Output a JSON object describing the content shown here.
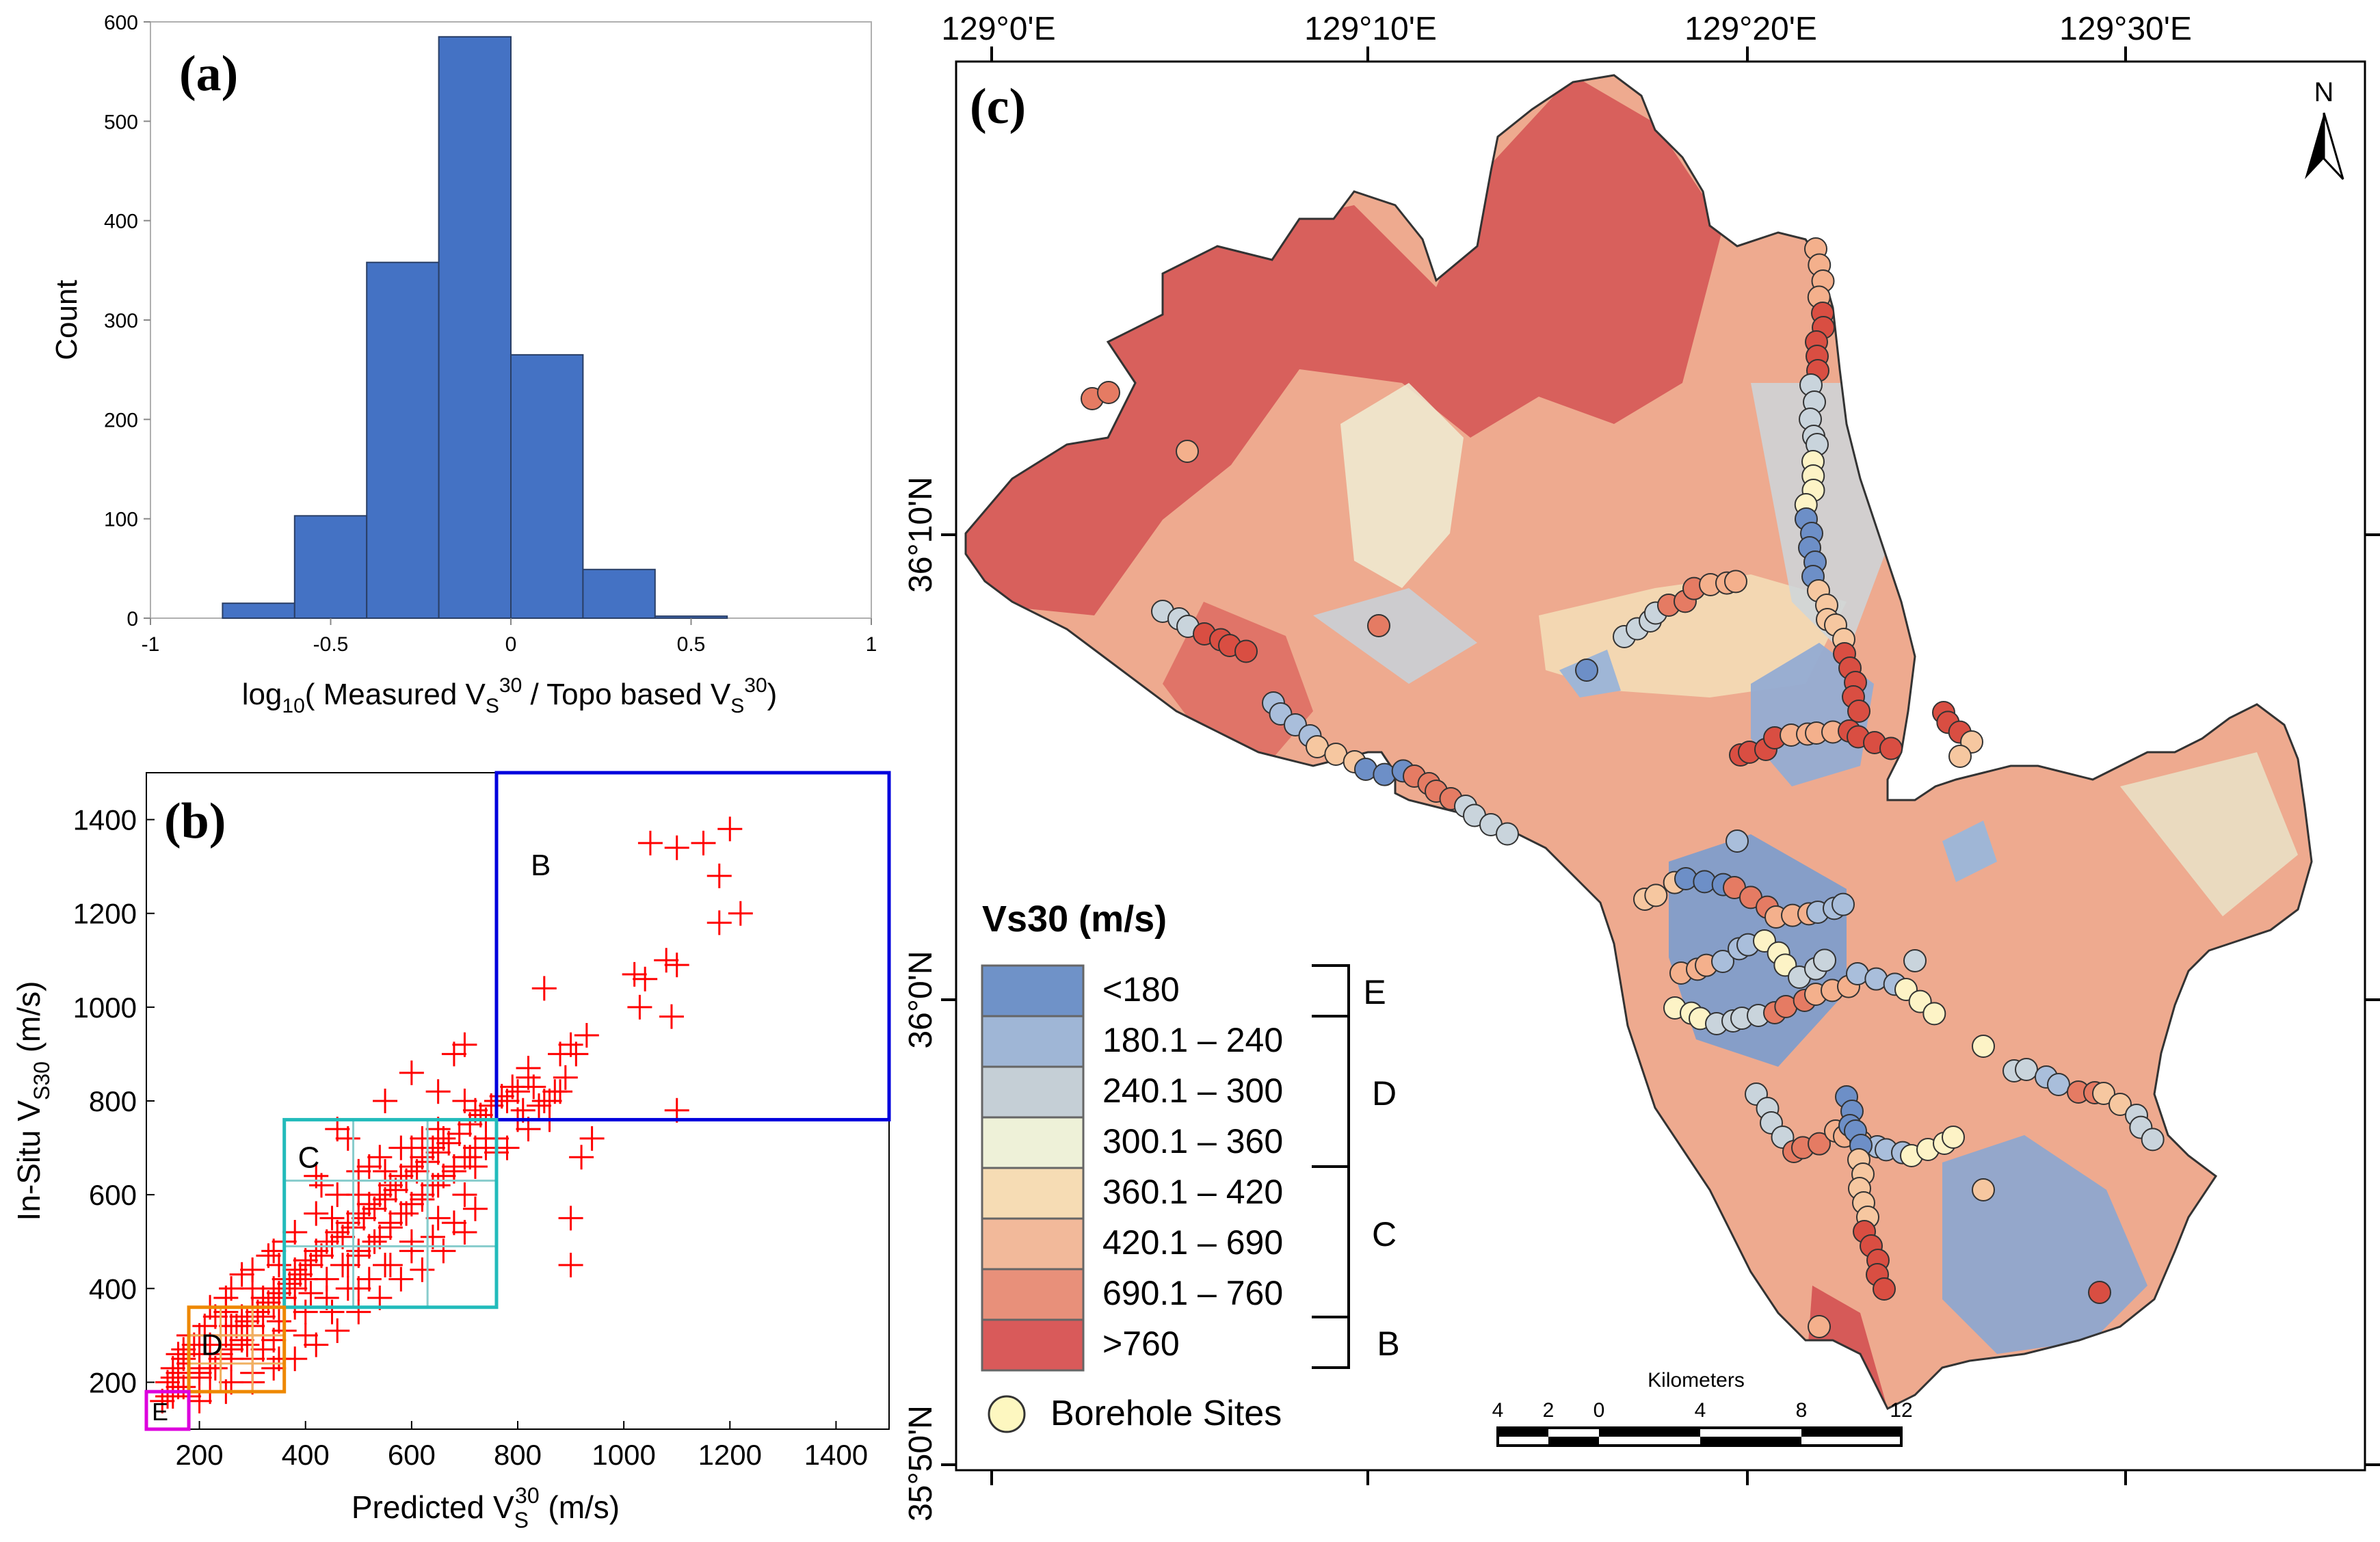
{
  "panel_a": {
    "label": "(a)",
    "xlabel_prefix": "log",
    "xlabel_sub10": "10",
    "xlabel_mid": "( Measured V",
    "xlabel_s": "S",
    "xlabel_30": "30",
    "xlabel_mid2": " / Topo based V",
    "xlabel_end": ")",
    "ylabel": "Count"
  },
  "panel_b": {
    "label": "(b)",
    "xlabel": "Predicted V",
    "xlabel_sub": "S",
    "xlabel_sup": "30",
    "xlabel_unit": " (m/s)",
    "ylabel": "In-Situ V",
    "ylabel_sub": "S30",
    "ylabel_unit": " (m/s)",
    "box_labels": [
      "B",
      "C",
      "D",
      "E"
    ]
  },
  "panel_c": {
    "label": "(c)",
    "north": "N",
    "lon_labels": [
      "129°0'E",
      "129°10'E",
      "129°20'E",
      "129°30'E"
    ],
    "lat_labels": [
      "36°10'N",
      "36°0'N",
      "35°50'N"
    ],
    "legend_title": "Vs30 (m/s)",
    "legend_items": [
      {
        "label": "<180",
        "color": "#6f92c8"
      },
      {
        "label": "180.1 – 240",
        "color": "#9fb6d6"
      },
      {
        "label": "240.1 – 300",
        "color": "#c5cfd6"
      },
      {
        "label": "300.1 – 360",
        "color": "#eef1d8"
      },
      {
        "label": "360.1 – 420",
        "color": "#f6dcb4"
      },
      {
        "label": "420.1 – 690",
        "color": "#f2b99a"
      },
      {
        "label": "690.1 – 760",
        "color": "#e8907a"
      },
      {
        "label": ">760",
        "color": "#d95a5a"
      }
    ],
    "site_classes": [
      "E",
      "D",
      "C",
      "B"
    ],
    "borehole_label": "Borehole Sites",
    "scale_title": "Kilometers",
    "scale_ticks": [
      "4",
      "2",
      "0",
      "4",
      "8",
      "12"
    ]
  },
  "chart_data": [
    {
      "type": "bar",
      "panel": "a",
      "title": "",
      "xlabel": "log10( Measured VS30 / Topo based VS30 )",
      "ylabel": "Count",
      "bin_edges": [
        -0.8,
        -0.6,
        -0.4,
        -0.2,
        0.0,
        0.2,
        0.4,
        0.6
      ],
      "values": [
        15,
        103,
        358,
        585,
        265,
        49,
        2
      ],
      "xlim": [
        -1,
        1
      ],
      "ylim": [
        0,
        600
      ],
      "xticks": [
        -1,
        -0.5,
        0,
        0.5,
        1
      ],
      "xtick_labels": [
        "-1",
        "-0.5",
        "0",
        "0.5",
        "1"
      ],
      "yticks": [
        0,
        100,
        200,
        300,
        400,
        500,
        600
      ],
      "color": "#4472c4"
    },
    {
      "type": "scatter",
      "panel": "b",
      "xlabel": "Predicted VS30 (m/s)",
      "ylabel": "In-Situ VS30 (m/s)",
      "xlim": [
        100,
        1500
      ],
      "ylim": [
        100,
        1500
      ],
      "xticks": [
        200,
        400,
        600,
        800,
        1000,
        1200,
        1400
      ],
      "yticks": [
        200,
        400,
        600,
        800,
        1000,
        1200,
        1400
      ],
      "marker": "+",
      "color": "#ff0000",
      "points": [
        [
          1050,
          1350
        ],
        [
          1100,
          1340
        ],
        [
          1150,
          1350
        ],
        [
          1200,
          1380
        ],
        [
          1180,
          1280
        ],
        [
          1220,
          1200
        ],
        [
          1180,
          1180
        ],
        [
          1020,
          1070
        ],
        [
          1040,
          1060
        ],
        [
          1080,
          1100
        ],
        [
          1100,
          1090
        ],
        [
          1030,
          1000
        ],
        [
          1090,
          980
        ],
        [
          1100,
          780
        ],
        [
          900,
          920
        ],
        [
          930,
          940
        ],
        [
          880,
          900
        ],
        [
          910,
          900
        ],
        [
          850,
          1040
        ],
        [
          890,
          850
        ],
        [
          820,
          870
        ],
        [
          850,
          800
        ],
        [
          870,
          820
        ],
        [
          800,
          820
        ],
        [
          780,
          800
        ],
        [
          900,
          550
        ],
        [
          900,
          450
        ],
        [
          920,
          680
        ],
        [
          940,
          720
        ],
        [
          820,
          740
        ],
        [
          860,
          760
        ],
        [
          700,
          920
        ],
        [
          680,
          900
        ],
        [
          600,
          860
        ],
        [
          650,
          820
        ],
        [
          550,
          800
        ],
        [
          420,
          640
        ],
        [
          430,
          620
        ],
        [
          460,
          740
        ],
        [
          480,
          720
        ],
        [
          520,
          660
        ],
        [
          700,
          800
        ],
        [
          720,
          780
        ],
        [
          740,
          760
        ],
        [
          660,
          720
        ],
        [
          640,
          700
        ],
        [
          620,
          680
        ],
        [
          600,
          660
        ],
        [
          580,
          640
        ],
        [
          560,
          620
        ],
        [
          540,
          600
        ],
        [
          520,
          580
        ],
        [
          500,
          560
        ],
        [
          480,
          540
        ],
        [
          460,
          520
        ],
        [
          440,
          500
        ],
        [
          420,
          480
        ],
        [
          400,
          460
        ],
        [
          380,
          440
        ],
        [
          360,
          420
        ],
        [
          340,
          400
        ],
        [
          320,
          380
        ],
        [
          300,
          360
        ],
        [
          280,
          340
        ],
        [
          260,
          320
        ],
        [
          240,
          300
        ],
        [
          220,
          280
        ],
        [
          200,
          260
        ],
        [
          180,
          240
        ],
        [
          160,
          220
        ],
        [
          140,
          200
        ],
        [
          130,
          160
        ],
        [
          150,
          170
        ],
        [
          170,
          190
        ],
        [
          200,
          210
        ],
        [
          230,
          230
        ],
        [
          260,
          250
        ],
        [
          290,
          280
        ],
        [
          320,
          300
        ],
        [
          350,
          330
        ],
        [
          380,
          360
        ],
        [
          410,
          390
        ],
        [
          440,
          420
        ],
        [
          470,
          450
        ],
        [
          500,
          480
        ],
        [
          530,
          500
        ],
        [
          560,
          530
        ],
        [
          590,
          560
        ],
        [
          620,
          590
        ],
        [
          650,
          620
        ],
        [
          680,
          650
        ],
        [
          710,
          680
        ],
        [
          740,
          700
        ],
        [
          760,
          720
        ],
        [
          700,
          600
        ],
        [
          650,
          550
        ],
        [
          600,
          500
        ],
        [
          550,
          450
        ],
        [
          500,
          400
        ],
        [
          450,
          350
        ],
        [
          400,
          300
        ],
        [
          350,
          250
        ],
        [
          300,
          200
        ],
        [
          250,
          180
        ],
        [
          200,
          160
        ],
        [
          700,
          520
        ],
        [
          660,
          480
        ],
        [
          620,
          440
        ],
        [
          580,
          420
        ],
        [
          540,
          380
        ],
        [
          500,
          350
        ],
        [
          460,
          310
        ],
        [
          420,
          280
        ],
        [
          380,
          250
        ],
        [
          340,
          230
        ],
        [
          300,
          220
        ],
        [
          260,
          200
        ],
        [
          220,
          180
        ],
        [
          180,
          170
        ],
        [
          620,
          720
        ],
        [
          580,
          700
        ],
        [
          540,
          680
        ],
        [
          500,
          650
        ],
        [
          460,
          600
        ],
        [
          420,
          560
        ],
        [
          380,
          520
        ],
        [
          340,
          480
        ],
        [
          300,
          440
        ],
        [
          260,
          400
        ],
        [
          220,
          360
        ],
        [
          180,
          300
        ],
        [
          160,
          260
        ],
        [
          150,
          230
        ],
        [
          300,
          250
        ],
        [
          320,
          270
        ],
        [
          340,
          290
        ],
        [
          360,
          310
        ],
        [
          280,
          290
        ],
        [
          260,
          270
        ],
        [
          240,
          250
        ],
        [
          220,
          230
        ],
        [
          200,
          220
        ],
        [
          250,
          300
        ],
        [
          270,
          320
        ],
        [
          290,
          330
        ],
        [
          310,
          350
        ],
        [
          330,
          370
        ],
        [
          350,
          390
        ],
        [
          370,
          410
        ],
        [
          390,
          430
        ],
        [
          410,
          450
        ],
        [
          430,
          470
        ],
        [
          450,
          490
        ],
        [
          470,
          510
        ],
        [
          490,
          530
        ],
        [
          510,
          550
        ],
        [
          530,
          570
        ],
        [
          550,
          590
        ],
        [
          570,
          610
        ],
        [
          590,
          630
        ],
        [
          610,
          650
        ],
        [
          630,
          670
        ],
        [
          650,
          690
        ],
        [
          670,
          710
        ],
        [
          690,
          730
        ],
        [
          710,
          750
        ],
        [
          730,
          770
        ],
        [
          750,
          790
        ],
        [
          760,
          800
        ],
        [
          480,
          450
        ],
        [
          500,
          470
        ],
        [
          520,
          490
        ],
        [
          540,
          510
        ],
        [
          560,
          540
        ],
        [
          580,
          560
        ],
        [
          600,
          580
        ],
        [
          620,
          600
        ],
        [
          640,
          620
        ],
        [
          660,
          640
        ],
        [
          680,
          660
        ],
        [
          700,
          680
        ],
        [
          720,
          700
        ],
        [
          740,
          720
        ],
        [
          400,
          420
        ],
        [
          380,
          400
        ],
        [
          360,
          380
        ],
        [
          340,
          360
        ],
        [
          320,
          340
        ],
        [
          300,
          320
        ],
        [
          280,
          300
        ],
        [
          260,
          280
        ],
        [
          240,
          260
        ],
        [
          220,
          240
        ],
        [
          200,
          230
        ],
        [
          180,
          210
        ],
        [
          160,
          190
        ],
        [
          140,
          170
        ],
        [
          400,
          350
        ],
        [
          440,
          380
        ],
        [
          480,
          400
        ],
        [
          520,
          420
        ],
        [
          560,
          450
        ],
        [
          600,
          480
        ],
        [
          640,
          510
        ],
        [
          680,
          540
        ],
        [
          720,
          570
        ],
        [
          450,
          550
        ],
        [
          500,
          600
        ],
        [
          550,
          650
        ],
        [
          600,
          700
        ],
        [
          650,
          740
        ],
        [
          350,
          450
        ],
        [
          300,
          400
        ],
        [
          250,
          350
        ],
        [
          200,
          300
        ],
        [
          170,
          270
        ],
        [
          360,
          500
        ],
        [
          330,
          470
        ],
        [
          280,
          430
        ],
        [
          250,
          380
        ],
        [
          230,
          340
        ],
        [
          210,
          320
        ],
        [
          190,
          280
        ],
        [
          170,
          250
        ],
        [
          150,
          210
        ],
        [
          720,
          660
        ],
        [
          760,
          690
        ],
        [
          780,
          700
        ],
        [
          800,
          760
        ],
        [
          810,
          780
        ],
        [
          840,
          790
        ],
        [
          860,
          800
        ],
        [
          880,
          820
        ],
        [
          830,
          830
        ],
        [
          820,
          850
        ],
        [
          790,
          830
        ],
        [
          770,
          810
        ]
      ],
      "boxes": [
        {
          "label": "B",
          "x": [
            760,
            1500
          ],
          "y": [
            760,
            1500
          ],
          "color": "#0000dd"
        },
        {
          "label": "C",
          "x": [
            360,
            760
          ],
          "y": [
            360,
            760
          ],
          "color": "#22bbbb"
        },
        {
          "label": "D",
          "x": [
            180,
            360
          ],
          "y": [
            180,
            360
          ],
          "color": "#ee8800"
        },
        {
          "label": "E",
          "x": [
            100,
            180
          ],
          "y": [
            100,
            180
          ],
          "color": "#dd00dd"
        }
      ],
      "sub_boxes_C": [
        [
          360,
          490,
          490,
          630
        ],
        [
          490,
          630,
          360,
          490
        ],
        [
          490,
          630,
          490,
          630
        ],
        [
          630,
          760,
          490,
          630
        ],
        [
          490,
          630,
          630,
          760
        ]
      ],
      "sub_boxes_D": [
        [
          180,
          240,
          180,
          240
        ],
        [
          240,
          300,
          240,
          300
        ],
        [
          300,
          360,
          300,
          360
        ],
        [
          180,
          240,
          240,
          300
        ],
        [
          240,
          300,
          180,
          240
        ],
        [
          300,
          360,
          240,
          300
        ],
        [
          240,
          300,
          300,
          360
        ]
      ]
    }
  ]
}
